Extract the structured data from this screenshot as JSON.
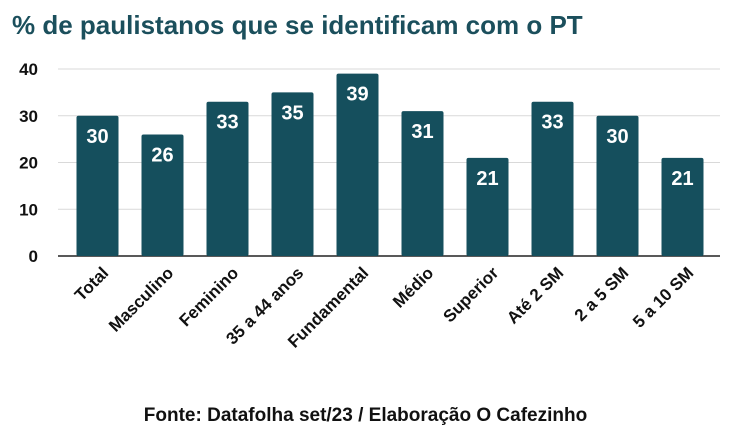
{
  "title": "% de paulistanos que se identificam com o PT",
  "source": "Fonte: Datafolha set/23 / Elaboração O Cafezinho",
  "colors": {
    "bar": "#154f5d",
    "title": "#1b4f5c",
    "grid": "#d9d9d9",
    "axis": "#222222",
    "label": "#ffffff"
  },
  "chart_data": {
    "type": "bar",
    "categories": [
      "Total",
      "Masculino",
      "Feminino",
      "35 a 44 anos",
      "Fundamental",
      "Médio",
      "Superior",
      "Até 2 SM",
      "2 a 5 SM",
      "5 a 10 SM"
    ],
    "values": [
      30,
      26,
      33,
      35,
      39,
      31,
      21,
      33,
      30,
      21
    ],
    "ylim": [
      0,
      40
    ],
    "yticks": [
      0,
      10,
      20,
      30,
      40
    ],
    "grid": true,
    "data_labels": true
  }
}
